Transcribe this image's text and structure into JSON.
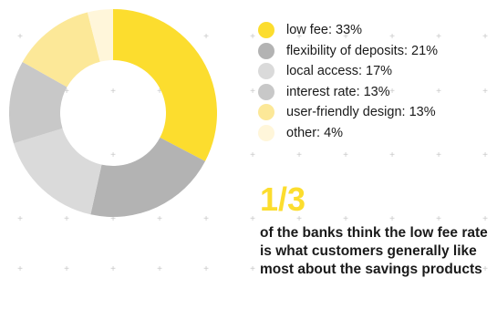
{
  "chart_data": {
    "type": "pie",
    "categories": [
      "low fee",
      "flexibility of deposits",
      "local access",
      "interest rate",
      "user-friendly design",
      "other"
    ],
    "values": [
      33,
      21,
      17,
      13,
      13,
      4
    ],
    "labels": [
      "low fee: 33%",
      "flexibility of deposits: 21%",
      "local access: 17%",
      "interest rate: 13%",
      "user-friendly design: 13%",
      "other: 4%"
    ],
    "colors": [
      "#FCDD2E",
      "#B3B3B3",
      "#DADADA",
      "#C8C8C8",
      "#FCE898",
      "#FFF6DA"
    ],
    "donut": true,
    "legend": "right"
  },
  "callout": {
    "fraction": "1/3",
    "fraction_color": "#FCDD2E",
    "text": "of the banks think the low fee rate is what customers generally like most about the savings products"
  },
  "background": {
    "grid_marker_color": "#c9c9c9"
  }
}
